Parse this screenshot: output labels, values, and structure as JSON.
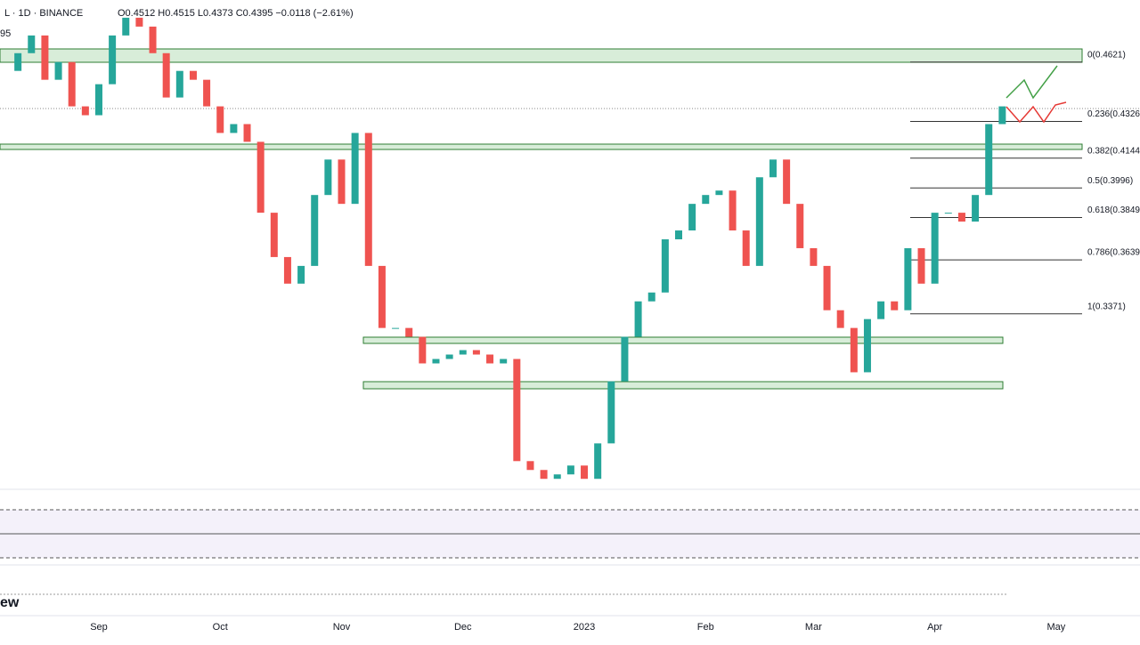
{
  "header": {
    "symbol": "L · 1D · BINANCE",
    "ohlc": "O0.4512 H0.4515 L0.4373 C0.4395 −0.0118 (−2.61%)",
    "badge": "95",
    "watermark": "ew"
  },
  "chart_data": {
    "type": "candlestick",
    "categories": [
      null,
      null,
      null,
      null,
      null,
      null,
      null,
      "Sep",
      null,
      null,
      null,
      null,
      null,
      null,
      null,
      null,
      "Oct",
      null,
      null,
      null,
      null,
      null,
      null,
      null,
      null,
      "Nov",
      null,
      null,
      null,
      null,
      null,
      null,
      null,
      null,
      "Dec",
      null,
      null,
      null,
      null,
      null,
      null,
      null,
      null,
      "2023",
      null,
      null,
      null,
      null,
      null,
      null,
      null,
      null,
      "Feb",
      null,
      null,
      null,
      null,
      null,
      null,
      null,
      "Mar",
      null,
      null,
      null,
      null,
      null,
      null,
      null,
      null,
      "Apr",
      null,
      null,
      null,
      null,
      null,
      null,
      null,
      null,
      "May"
    ],
    "values": [
      0.4577,
      0.4665,
      0.4753,
      0.4533,
      0.4621,
      0.4401,
      0.4357,
      0.4511,
      0.4753,
      0.4841,
      0.4797,
      0.4665,
      0.4445,
      0.4577,
      0.4533,
      0.4401,
      0.4269,
      0.4313,
      0.4225,
      0.3873,
      0.3653,
      0.3521,
      0.3609,
      0.3961,
      0.4137,
      0.3917,
      0.4269,
      0.3609,
      0.3301,
      0.3301,
      0.3257,
      0.3125,
      0.3147,
      0.3169,
      0.3191,
      0.3169,
      0.3125,
      0.3147,
      0.264,
      0.2596,
      0.2552,
      0.2574,
      0.2618,
      0.2552,
      0.2728,
      0.3036,
      0.3257,
      0.3433,
      0.3477,
      0.3741,
      0.3785,
      0.3917,
      0.3961,
      0.3983,
      0.3785,
      0.3609,
      0.4049,
      0.4137,
      0.3917,
      0.3697,
      0.3609,
      0.3389,
      0.3301,
      0.3081,
      0.3345,
      0.3433,
      0.3389,
      0.3697,
      0.3521,
      0.3873,
      0.3873,
      0.3829,
      0.3961,
      0.4313,
      0.4401,
      null,
      null,
      null,
      null
    ],
    "ylim": [
      0.25,
      0.4929
    ],
    "up_color": "#26a69a",
    "down_color": "#ef5350",
    "fib_levels": [
      {
        "value": 0.4621,
        "label": "0(0.4621)"
      },
      {
        "value": 0.4326,
        "label": "0.236(0.4326"
      },
      {
        "value": 0.4144,
        "label": "0.382(0.4144"
      },
      {
        "value": 0.3996,
        "label": "0.5(0.3996)"
      },
      {
        "value": 0.3849,
        "label": "0.618(0.3849"
      },
      {
        "value": 0.3639,
        "label": "0.786(0.3639"
      },
      {
        "value": 0.3371,
        "label": "1(0.3371)"
      }
    ]
  }
}
